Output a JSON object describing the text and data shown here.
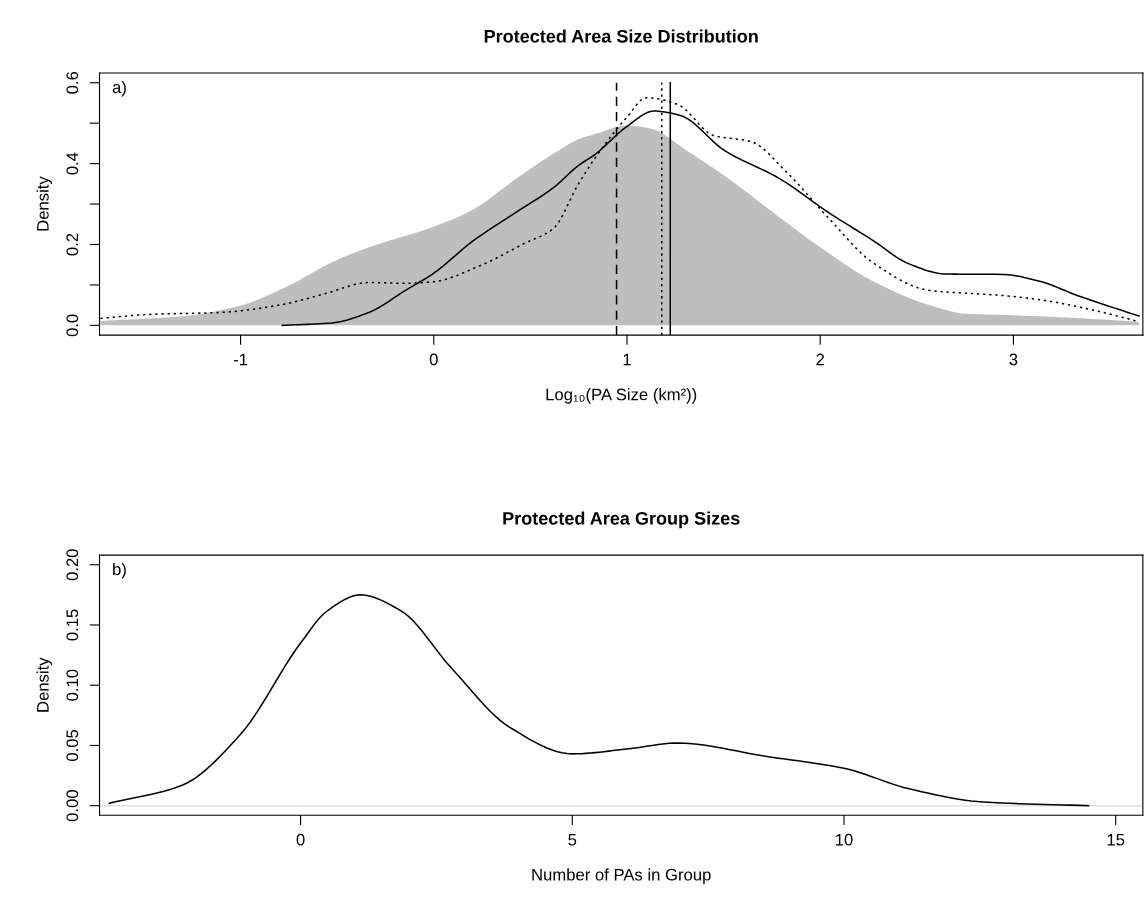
{
  "chart_data": [
    {
      "type": "line",
      "title": "Protected Area Size Distribution",
      "xlabel": "Log₁₀(PA Size (km²))",
      "ylabel": "Density",
      "annotations": [
        "a)"
      ],
      "xlim": [
        -1.73,
        3.67
      ],
      "ylim": [
        -0.024,
        0.624
      ],
      "xticks": [
        -1,
        0,
        1,
        2,
        3
      ],
      "yticks": [
        {
          "value": 0,
          "label": "0.0"
        },
        {
          "value": 0.1,
          "label": null
        },
        {
          "value": 0.2,
          "label": "0.2"
        },
        {
          "value": 0.3,
          "label": null
        },
        {
          "value": 0.4,
          "label": "0.4"
        },
        {
          "value": 0.5,
          "label": null
        },
        {
          "value": 0.6,
          "label": "0.6"
        }
      ],
      "grid": false,
      "legend": false,
      "series": [
        {
          "type": "area",
          "color": "#bebebe",
          "x": [
            -1.725,
            -1.29,
            -1.0,
            -0.756,
            -0.527,
            -0.336,
            0.0,
            0.198,
            0.427,
            0.644,
            0.748,
            0.835,
            1.0,
            1.12,
            1.31,
            1.51,
            1.79,
            2.0,
            2.27,
            2.56,
            2.75,
            3.0,
            3.33,
            3.65
          ],
          "values": [
            0.011,
            0.023,
            0.049,
            0.097,
            0.156,
            0.193,
            0.244,
            0.285,
            0.363,
            0.432,
            0.46,
            0.473,
            0.494,
            0.487,
            0.432,
            0.368,
            0.267,
            0.193,
            0.11,
            0.051,
            0.029,
            0.025,
            0.018,
            0.009
          ]
        },
        {
          "type": "line",
          "color": "#000000",
          "line_style": "solid",
          "x": [
            -0.784,
            -0.527,
            -0.336,
            -0.145,
            0.0,
            0.198,
            0.427,
            0.618,
            0.748,
            0.835,
            1.0,
            1.14,
            1.276,
            1.506,
            1.79,
            2.04,
            2.27,
            2.46,
            2.65,
            2.94,
            3.13,
            3.33,
            3.65
          ],
          "values": [
            0.0,
            0.006,
            0.032,
            0.087,
            0.129,
            0.207,
            0.28,
            0.34,
            0.395,
            0.423,
            0.492,
            0.53,
            0.519,
            0.432,
            0.363,
            0.28,
            0.211,
            0.152,
            0.127,
            0.126,
            0.11,
            0.074,
            0.023
          ]
        },
        {
          "type": "line",
          "color": "#000000",
          "line_style": "dotted",
          "x": [
            -1.725,
            -1.48,
            -1.1,
            -0.79,
            -0.565,
            -0.336,
            -0.145,
            0.0,
            0.237,
            0.466,
            0.618,
            0.748,
            0.835,
            1.0,
            1.1,
            1.26,
            1.45,
            1.64,
            1.83,
            2.04,
            2.27,
            2.56,
            2.94,
            3.13,
            3.42,
            3.65
          ],
          "values": [
            0.017,
            0.027,
            0.032,
            0.051,
            0.078,
            0.106,
            0.104,
            0.108,
            0.147,
            0.202,
            0.239,
            0.349,
            0.414,
            0.515,
            0.563,
            0.547,
            0.469,
            0.455,
            0.377,
            0.267,
            0.156,
            0.087,
            0.074,
            0.064,
            0.037,
            0.009
          ]
        }
      ],
      "ref_lines": [
        {
          "axis": "x",
          "value": 0.946,
          "color": "#000000",
          "line_style": "dashed"
        },
        {
          "axis": "x",
          "value": 1.18,
          "color": "#000000",
          "line_style": "dotted"
        },
        {
          "axis": "x",
          "value": 1.224,
          "color": "#000000",
          "line_style": "solid"
        }
      ]
    },
    {
      "type": "line",
      "title": "Protected Area Group Sizes",
      "xlabel": "Number of PAs in Group",
      "ylabel": "Density",
      "annotations": [
        "b)"
      ],
      "xlim": [
        -3.7,
        15.5
      ],
      "ylim": [
        -0.008,
        0.208
      ],
      "xticks": [
        0,
        5,
        10,
        15
      ],
      "yticks": [
        {
          "value": 0,
          "label": "0.00"
        },
        0.05,
        {
          "value": 0.1,
          "label": "0.10"
        },
        0.15,
        {
          "value": 0.2,
          "label": "0.20"
        }
      ],
      "grid": false,
      "legend": false,
      "series": [
        {
          "type": "line",
          "color": "#000000",
          "line_style": "solid",
          "x": [
            -3.52,
            -2.18,
            -1.11,
            0.0,
            0.5,
            1.1,
            1.84,
            2.78,
            3.85,
            5.0,
            6.0,
            6.94,
            8.55,
            10.0,
            11.2,
            12.57,
            14.5
          ],
          "values": [
            0.002,
            0.017,
            0.059,
            0.135,
            0.162,
            0.175,
            0.162,
            0.114,
            0.065,
            0.043,
            0.047,
            0.052,
            0.041,
            0.031,
            0.014,
            0.003,
            0.0
          ]
        }
      ],
      "ref_lines": [
        {
          "axis": "y",
          "value": 0,
          "color": "#e0e0e0",
          "line_style": "solid"
        }
      ]
    }
  ]
}
